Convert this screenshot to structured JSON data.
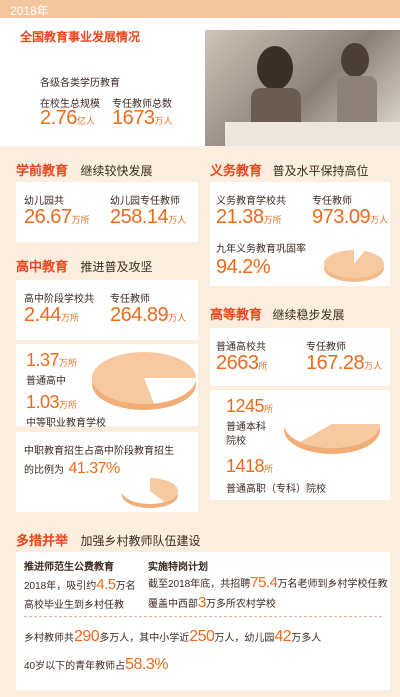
{
  "year": "2018年",
  "overview": {
    "title": "全国教育事业发展情况",
    "subtitle": "各级各类学历教育",
    "students_label": "在校生总规模",
    "students_value": "2.76",
    "students_unit": "亿人",
    "teachers_label": "专任教师总数",
    "teachers_value": "1673",
    "teachers_unit": "万人"
  },
  "preschool": {
    "title": "学前教育",
    "subtitle": "继续较快发展",
    "kg_label": "幼儿园共",
    "kg_value": "26.67",
    "kg_unit": "万所",
    "teachers_label": "幼儿园专任教师",
    "teachers_value": "258.14",
    "teachers_unit": "万人"
  },
  "compulsory": {
    "title": "义务教育",
    "subtitle": "普及水平保持高位",
    "schools_label": "义务教育学校共",
    "schools_value": "21.38",
    "schools_unit": "万所",
    "teachers_label": "专任教师",
    "teachers_value": "973.09",
    "teachers_unit": "万人",
    "rate_label": "九年义务教育巩固率",
    "rate_value": "94.2%",
    "rate": 0.942
  },
  "highschool": {
    "title": "高中教育",
    "subtitle": "推进普及攻坚",
    "schools_label": "高中阶段学校共",
    "schools_value": "2.44",
    "schools_unit": "万所",
    "teachers_label": "专任教师",
    "teachers_value": "264.89",
    "teachers_unit": "万人",
    "general_value": "1.37",
    "general_unit": "万所",
    "general_label": "普通高中",
    "vocational_value": "1.03",
    "vocational_unit": "万所",
    "vocational_label": "中等职业教育学校",
    "ratio_text_1": "中职教育招生占高中阶段教育招生",
    "ratio_text_2": "的比例为",
    "ratio_value": "41.37%",
    "ratio": 0.4137
  },
  "higher": {
    "title": "高等教育",
    "subtitle": "继续稳步发展",
    "schools_label": "普通高校共",
    "schools_value": "2663",
    "schools_unit": "所",
    "teachers_label": "专任教师",
    "teachers_value": "167.28",
    "teachers_unit": "万人",
    "undergrad_value": "1245",
    "undergrad_unit": "所",
    "undergrad_label_1": "普通本科",
    "undergrad_label_2": "院校",
    "voc_value": "1418",
    "voc_unit": "所",
    "voc_label": "普通高职（专科）院校"
  },
  "rural": {
    "title": "多措并举",
    "subtitle": "加强乡村教师队伍建设",
    "plan1_title": "推进师范生公费教育",
    "plan1_text_1": "2018年，吸引约",
    "plan1_value": "4.5",
    "plan1_text_2": "万名",
    "plan1_text_3": "高校毕业生到乡村任教",
    "plan2_title": "实施特岗计划",
    "plan2_text_1": "截至2018年底，共招聘",
    "plan2_value1": "75.4",
    "plan2_text_2": "万名老师到乡村学校任教",
    "plan2_text_3": "覆盖中西部",
    "plan2_value2": "3",
    "plan2_text_4": "万多所农村学校",
    "stat_text_1": "乡村教师共",
    "stat_value1": "290",
    "stat_text_2": "多万人，其中小学近",
    "stat_value2": "250",
    "stat_text_3": "万人，幼儿园",
    "stat_value3": "42",
    "stat_text_4": "万多人",
    "young_text": "40岁以下的青年教师占",
    "young_value": "58.3%"
  },
  "colors": {
    "accent": "#ec6b1d",
    "title": "#e8471f",
    "pie": "#f3b98b",
    "background": "#fbeede"
  }
}
